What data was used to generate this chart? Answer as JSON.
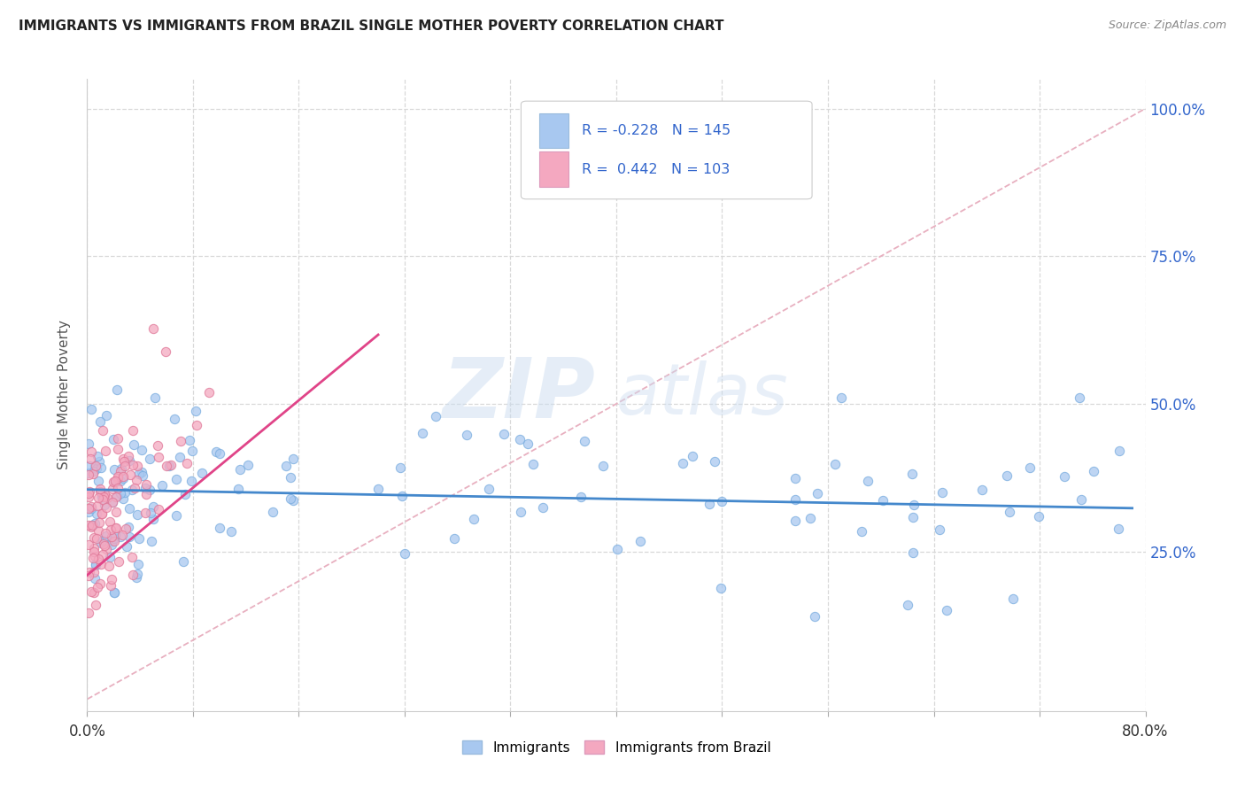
{
  "title": "IMMIGRANTS VS IMMIGRANTS FROM BRAZIL SINGLE MOTHER POVERTY CORRELATION CHART",
  "source": "Source: ZipAtlas.com",
  "ylabel": "Single Mother Poverty",
  "legend_label_1": "Immigrants",
  "legend_label_2": "Immigrants from Brazil",
  "legend_R1": "R = -0.228",
  "legend_N1": "N = 145",
  "legend_R2": "R =  0.442",
  "legend_N2": "N = 103",
  "watermark_zip": "ZIP",
  "watermark_atlas": "atlas",
  "xlim": [
    0.0,
    0.8
  ],
  "ylim": [
    -0.02,
    1.05
  ],
  "scatter_color_1": "#a8c8f0",
  "scatter_border_1": "#7aaddf",
  "scatter_color_2": "#f4a8c0",
  "scatter_border_2": "#e07898",
  "line_color_1": "#4488cc",
  "line_color_2": "#e04488",
  "diagonal_color": "#e8b0c0",
  "background_color": "#ffffff",
  "grid_color": "#d8d8d8",
  "legend_text_color": "#3366cc",
  "tick_color_right": "#3366cc",
  "x_tick_positions": [
    0.0,
    0.08,
    0.16,
    0.24,
    0.32,
    0.4,
    0.48,
    0.56,
    0.64,
    0.72,
    0.8
  ],
  "y_tick_positions": [
    0.25,
    0.5,
    0.75,
    1.0
  ]
}
